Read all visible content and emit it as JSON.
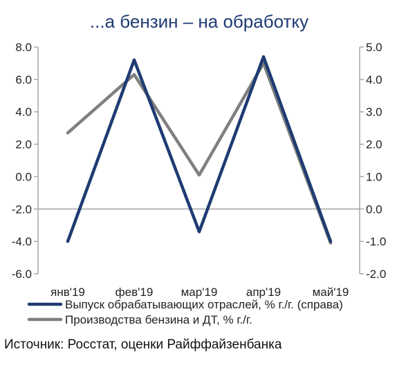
{
  "chart_data": {
    "type": "line",
    "title": "...а бензин – на обработку",
    "categories": [
      "янв'19",
      "фев'19",
      "мар'19",
      "апр'19",
      "май'19"
    ],
    "left_axis": {
      "ylim": [
        -6.0,
        8.0
      ],
      "ticks": [
        "8.0",
        "6.0",
        "4.0",
        "2.0",
        "0.0",
        "-2.0",
        "-4.0",
        "-6.0"
      ]
    },
    "right_axis": {
      "ylim": [
        -2.0,
        5.0
      ],
      "ticks": [
        "5.0",
        "4.0",
        "3.0",
        "2.0",
        "1.0",
        "0.0",
        "-1.0",
        "-2.0"
      ]
    },
    "series": [
      {
        "name": "Выпуск обрабатывающих отраслей, % г./г. (справа)",
        "axis": "right",
        "color": "#1f3b73",
        "values": [
          -1.0,
          4.6,
          -0.7,
          4.7,
          -1.0
        ]
      },
      {
        "name": "Производства бензина и ДТ, % г./г.",
        "axis": "left",
        "color": "#7f7f7f",
        "values": [
          2.7,
          6.3,
          0.1,
          7.0,
          -4.1
        ]
      }
    ],
    "grid": false,
    "legend": "bottom-left"
  },
  "source_text": "Источник: Росстат, оценки Райффайзенбанка"
}
